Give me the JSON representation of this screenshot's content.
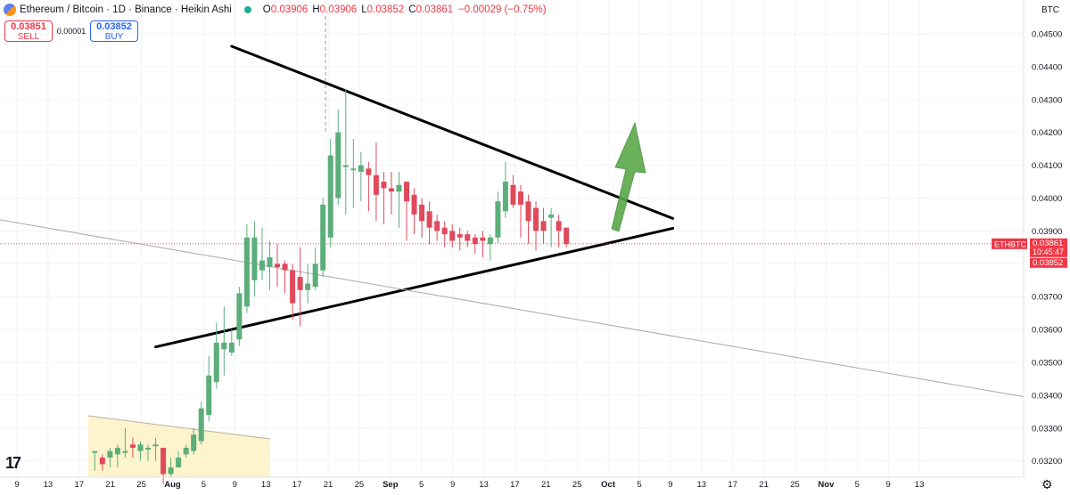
{
  "header": {
    "title": "Ethereum / Bitcoin · 1D · Binance · Heikin Ashi",
    "open_label": "O",
    "open": "0.03906",
    "high_label": "H",
    "high": "0.03906",
    "low_label": "L",
    "low": "0.03852",
    "close_label": "C",
    "close": "0.03861",
    "change": "−0.00029 (−0.75%)"
  },
  "trade": {
    "sell_price": "0.03851",
    "sell_label": "SELL",
    "spread": "0.00001",
    "buy_price": "0.03852",
    "buy_label": "BUY"
  },
  "currency": "BTC",
  "symbol_tag": "ETHBTC",
  "price_badge": {
    "price": "0.03861",
    "countdown": "10:45:47",
    "low_price": "0.03852"
  },
  "colors": {
    "up": "#5cae7a",
    "down": "#e04a5c",
    "badge": "#f23645",
    "arrow": "#5aa84a"
  },
  "icons": [
    "tradingview-logo-icon",
    "settings-gear-icon"
  ],
  "chart_data": {
    "type": "candlestick",
    "y_axis_ticks": [
      "0.04500",
      "0.04400",
      "0.04300",
      "0.04200",
      "0.04100",
      "0.04000",
      "0.03900",
      "0.03800",
      "0.03700",
      "0.03600",
      "0.03500",
      "0.03400",
      "0.03300",
      "0.03200"
    ],
    "x_axis_ticks": [
      "9",
      "13",
      "17",
      "21",
      "25",
      "Aug",
      "5",
      "9",
      "13",
      "17",
      "21",
      "25",
      "Sep",
      "5",
      "9",
      "13",
      "17",
      "21",
      "25",
      "Oct",
      "5",
      "9",
      "13",
      "17",
      "21",
      "25",
      "Nov",
      "5",
      "9",
      "13"
    ],
    "ylim": [
      0.03145,
      0.0464
    ],
    "grid": true,
    "last_price": 0.03861,
    "candles": [
      {
        "o": 0.0323,
        "h": 0.0323,
        "l": 0.0317,
        "c": 0.0323
      },
      {
        "o": 0.0321,
        "h": 0.0322,
        "l": 0.0317,
        "c": 0.0319
      },
      {
        "o": 0.0321,
        "h": 0.0324,
        "l": 0.0318,
        "c": 0.0323
      },
      {
        "o": 0.0322,
        "h": 0.0325,
        "l": 0.0318,
        "c": 0.0324
      },
      {
        "o": 0.0323,
        "h": 0.033,
        "l": 0.0321,
        "c": 0.0323
      },
      {
        "o": 0.0325,
        "h": 0.0327,
        "l": 0.0321,
        "c": 0.0324
      },
      {
        "o": 0.0323,
        "h": 0.0326,
        "l": 0.032,
        "c": 0.0325
      },
      {
        "o": 0.0324,
        "h": 0.0325,
        "l": 0.032,
        "c": 0.0324
      },
      {
        "o": 0.0325,
        "h": 0.0327,
        "l": 0.032,
        "c": 0.0325
      },
      {
        "o": 0.0324,
        "h": 0.0324,
        "l": 0.0313,
        "c": 0.0316
      },
      {
        "o": 0.0316,
        "h": 0.0321,
        "l": 0.0315,
        "c": 0.0318
      },
      {
        "o": 0.0318,
        "h": 0.0323,
        "l": 0.0318,
        "c": 0.0321
      },
      {
        "o": 0.0322,
        "h": 0.0325,
        "l": 0.0321,
        "c": 0.0324
      },
      {
        "o": 0.0323,
        "h": 0.033,
        "l": 0.0322,
        "c": 0.0328
      },
      {
        "o": 0.0326,
        "h": 0.0338,
        "l": 0.0325,
        "c": 0.0336
      },
      {
        "o": 0.0334,
        "h": 0.0352,
        "l": 0.0332,
        "c": 0.0346
      },
      {
        "o": 0.0344,
        "h": 0.0362,
        "l": 0.0342,
        "c": 0.0356
      },
      {
        "o": 0.0354,
        "h": 0.0367,
        "l": 0.0346,
        "c": 0.0356
      },
      {
        "o": 0.0353,
        "h": 0.036,
        "l": 0.0352,
        "c": 0.0356
      },
      {
        "o": 0.0357,
        "h": 0.0373,
        "l": 0.0355,
        "c": 0.0371
      },
      {
        "o": 0.0367,
        "h": 0.0392,
        "l": 0.0365,
        "c": 0.0388
      },
      {
        "o": 0.0375,
        "h": 0.0393,
        "l": 0.037,
        "c": 0.0388
      },
      {
        "o": 0.0378,
        "h": 0.0391,
        "l": 0.0375,
        "c": 0.0381
      },
      {
        "o": 0.0379,
        "h": 0.0387,
        "l": 0.0372,
        "c": 0.0382
      },
      {
        "o": 0.038,
        "h": 0.0386,
        "l": 0.0373,
        "c": 0.0379
      },
      {
        "o": 0.038,
        "h": 0.0381,
        "l": 0.0371,
        "c": 0.0378
      },
      {
        "o": 0.0378,
        "h": 0.038,
        "l": 0.0363,
        "c": 0.0368
      },
      {
        "o": 0.0376,
        "h": 0.0385,
        "l": 0.0361,
        "c": 0.0372
      },
      {
        "o": 0.0372,
        "h": 0.038,
        "l": 0.0368,
        "c": 0.0374
      },
      {
        "o": 0.0373,
        "h": 0.0385,
        "l": 0.0372,
        "c": 0.038
      },
      {
        "o": 0.0378,
        "h": 0.04,
        "l": 0.0376,
        "c": 0.0398
      },
      {
        "o": 0.0388,
        "h": 0.0418,
        "l": 0.0385,
        "c": 0.0413
      },
      {
        "o": 0.04,
        "h": 0.0427,
        "l": 0.0398,
        "c": 0.042
      },
      {
        "o": 0.041,
        "h": 0.0433,
        "l": 0.0395,
        "c": 0.041
      },
      {
        "o": 0.0409,
        "h": 0.0418,
        "l": 0.0397,
        "c": 0.0409
      },
      {
        "o": 0.0408,
        "h": 0.0414,
        "l": 0.0399,
        "c": 0.041
      },
      {
        "o": 0.0409,
        "h": 0.0411,
        "l": 0.0396,
        "c": 0.0407
      },
      {
        "o": 0.0407,
        "h": 0.0417,
        "l": 0.0393,
        "c": 0.0401
      },
      {
        "o": 0.0405,
        "h": 0.0408,
        "l": 0.0392,
        "c": 0.0403
      },
      {
        "o": 0.0403,
        "h": 0.0408,
        "l": 0.0395,
        "c": 0.0402
      },
      {
        "o": 0.0402,
        "h": 0.0408,
        "l": 0.0391,
        "c": 0.0404
      },
      {
        "o": 0.0405,
        "h": 0.0405,
        "l": 0.0387,
        "c": 0.0399
      },
      {
        "o": 0.0401,
        "h": 0.0403,
        "l": 0.0389,
        "c": 0.0395
      },
      {
        "o": 0.0398,
        "h": 0.04,
        "l": 0.0388,
        "c": 0.0393
      },
      {
        "o": 0.0396,
        "h": 0.0399,
        "l": 0.0386,
        "c": 0.0391
      },
      {
        "o": 0.0393,
        "h": 0.0395,
        "l": 0.0387,
        "c": 0.039
      },
      {
        "o": 0.0391,
        "h": 0.0393,
        "l": 0.0385,
        "c": 0.0389
      },
      {
        "o": 0.039,
        "h": 0.0392,
        "l": 0.0385,
        "c": 0.0387
      },
      {
        "o": 0.0389,
        "h": 0.0391,
        "l": 0.0384,
        "c": 0.0388
      },
      {
        "o": 0.0389,
        "h": 0.039,
        "l": 0.0385,
        "c": 0.0387
      },
      {
        "o": 0.0388,
        "h": 0.0389,
        "l": 0.0383,
        "c": 0.0386
      },
      {
        "o": 0.0388,
        "h": 0.039,
        "l": 0.0382,
        "c": 0.0387
      },
      {
        "o": 0.0386,
        "h": 0.0389,
        "l": 0.0381,
        "c": 0.0388
      },
      {
        "o": 0.0388,
        "h": 0.0402,
        "l": 0.0386,
        "c": 0.0399
      },
      {
        "o": 0.0396,
        "h": 0.0411,
        "l": 0.0394,
        "c": 0.0405
      },
      {
        "o": 0.0404,
        "h": 0.0407,
        "l": 0.0397,
        "c": 0.0398
      },
      {
        "o": 0.0402,
        "h": 0.0404,
        "l": 0.0388,
        "c": 0.0398
      },
      {
        "o": 0.0399,
        "h": 0.0401,
        "l": 0.0386,
        "c": 0.0393
      },
      {
        "o": 0.0397,
        "h": 0.0399,
        "l": 0.0384,
        "c": 0.039
      },
      {
        "o": 0.0393,
        "h": 0.0397,
        "l": 0.0386,
        "c": 0.039
      },
      {
        "o": 0.0394,
        "h": 0.0397,
        "l": 0.0385,
        "c": 0.0395
      },
      {
        "o": 0.0393,
        "h": 0.0395,
        "l": 0.0385,
        "c": 0.039
      },
      {
        "o": 0.0391,
        "h": 0.0391,
        "l": 0.0385,
        "c": 0.0386
      }
    ],
    "trendlines": [
      {
        "name": "upper",
        "from": {
          "i": 28,
          "p": 0.04462
        },
        "to": {
          "i": 86,
          "p": 0.03938
        }
      },
      {
        "name": "lower",
        "from": {
          "i": 18,
          "p": 0.03547
        },
        "to": {
          "i": 86,
          "p": 0.03908
        }
      },
      {
        "name": "long-term",
        "from": {
          "i": -16,
          "p": 0.03988
        },
        "to": {
          "i": 134,
          "p": 0.03388
        }
      },
      {
        "name": "yellow-box-top",
        "from": {
          "i": -29,
          "p": 0.03337
        },
        "to": {
          "i": -5,
          "p": 0.0327
        }
      }
    ]
  }
}
